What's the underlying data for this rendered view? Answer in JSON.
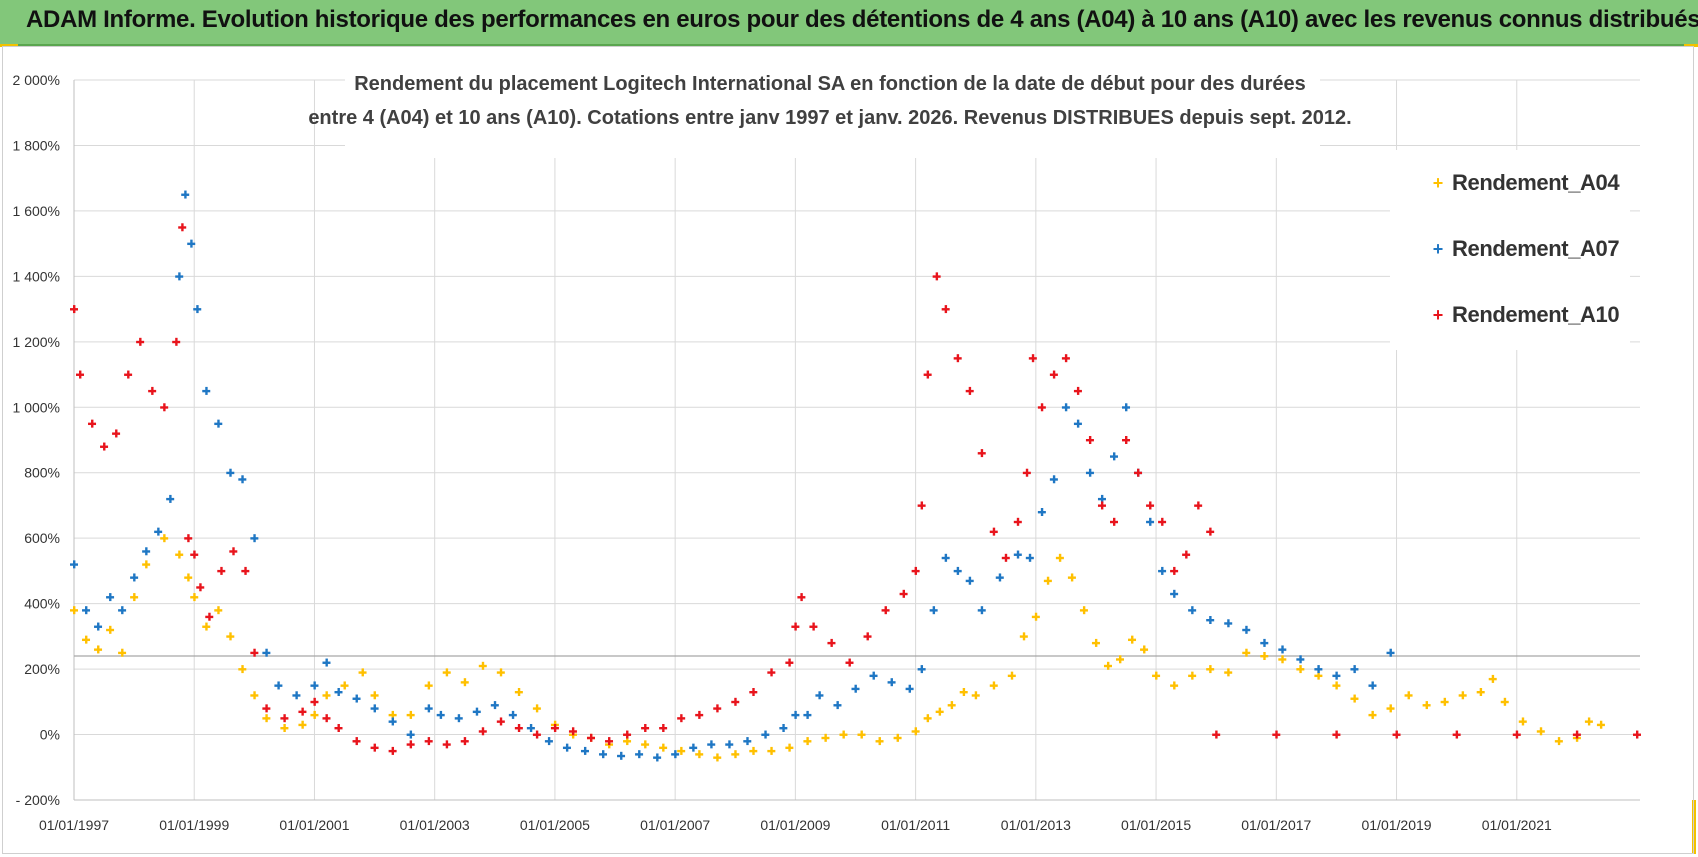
{
  "banner": {
    "title": "ADAM Informe. Evolution historique des performances en euros pour des détentions de 4 ans (A04) à 10 ans (A10) avec les revenus connus distribués"
  },
  "chart_data": {
    "type": "scatter",
    "title_line1": "Rendement du placement Logitech International SA en fonction de la date de début pour des durées",
    "title_line2": "entre 4 (A04) et 10 ans (A10). Cotations entre janv 1997 et janv. 2026. Revenus DISTRIBUES depuis sept. 2012.",
    "ylim": [
      -200,
      2000
    ],
    "xlim": [
      1997.0,
      2023.05
    ],
    "y_ticks": [
      -200,
      0,
      200,
      400,
      600,
      800,
      1000,
      1200,
      1400,
      1600,
      1800,
      2000
    ],
    "y_tick_labels": [
      "- 200%",
      "0%",
      "200%",
      "400%",
      "600%",
      "800%",
      "1 000%",
      "1 200%",
      "1 400%",
      "1 600%",
      "1 800%",
      "2 000%"
    ],
    "x_ticks": [
      1997.0,
      1999.0,
      2001.0,
      2003.0,
      2005.0,
      2007.0,
      2009.0,
      2011.0,
      2013.0,
      2015.0,
      2017.0,
      2019.0,
      2021.0
    ],
    "x_tick_labels": [
      "01/01/1997",
      "01/01/1999",
      "01/01/2001",
      "01/01/2003",
      "01/01/2005",
      "01/01/2007",
      "01/01/2009",
      "01/01/2011",
      "01/01/2013",
      "01/01/2015",
      "01/01/2017",
      "01/01/2019",
      "01/01/2021"
    ],
    "grid": true,
    "legend_position": "top-right",
    "series": [
      {
        "name": "Rendement_A04",
        "color": "#ffc000",
        "points": [
          [
            1997.0,
            380
          ],
          [
            1997.2,
            290
          ],
          [
            1997.4,
            260
          ],
          [
            1997.6,
            320
          ],
          [
            1997.8,
            250
          ],
          [
            1998.0,
            420
          ],
          [
            1998.2,
            520
          ],
          [
            1998.5,
            600
          ],
          [
            1998.75,
            550
          ],
          [
            1998.9,
            480
          ],
          [
            1999.0,
            420
          ],
          [
            1999.2,
            330
          ],
          [
            1999.4,
            380
          ],
          [
            1999.6,
            300
          ],
          [
            1999.8,
            200
          ],
          [
            2000.0,
            120
          ],
          [
            2000.2,
            50
          ],
          [
            2000.5,
            20
          ],
          [
            2000.8,
            30
          ],
          [
            2001.0,
            60
          ],
          [
            2001.2,
            120
          ],
          [
            2001.5,
            150
          ],
          [
            2001.8,
            190
          ],
          [
            2002.0,
            120
          ],
          [
            2002.3,
            60
          ],
          [
            2002.6,
            60
          ],
          [
            2002.9,
            150
          ],
          [
            2003.2,
            190
          ],
          [
            2003.5,
            160
          ],
          [
            2003.8,
            210
          ],
          [
            2004.1,
            190
          ],
          [
            2004.4,
            130
          ],
          [
            2004.7,
            80
          ],
          [
            2005.0,
            30
          ],
          [
            2005.3,
            0
          ],
          [
            2005.6,
            -10
          ],
          [
            2005.9,
            -30
          ],
          [
            2006.2,
            -20
          ],
          [
            2006.5,
            -30
          ],
          [
            2006.8,
            -40
          ],
          [
            2007.1,
            -50
          ],
          [
            2007.4,
            -60
          ],
          [
            2007.7,
            -70
          ],
          [
            2008.0,
            -60
          ],
          [
            2008.3,
            -50
          ],
          [
            2008.6,
            -50
          ],
          [
            2008.9,
            -40
          ],
          [
            2009.2,
            -20
          ],
          [
            2009.5,
            -10
          ],
          [
            2009.8,
            0
          ],
          [
            2010.1,
            0
          ],
          [
            2010.4,
            -20
          ],
          [
            2010.7,
            -10
          ],
          [
            2011.0,
            10
          ],
          [
            2011.2,
            50
          ],
          [
            2011.4,
            70
          ],
          [
            2011.6,
            90
          ],
          [
            2011.8,
            130
          ],
          [
            2012.0,
            120
          ],
          [
            2012.3,
            150
          ],
          [
            2012.6,
            180
          ],
          [
            2012.8,
            300
          ],
          [
            2013.0,
            360
          ],
          [
            2013.2,
            470
          ],
          [
            2013.4,
            540
          ],
          [
            2013.6,
            480
          ],
          [
            2013.8,
            380
          ],
          [
            2014.0,
            280
          ],
          [
            2014.2,
            210
          ],
          [
            2014.4,
            230
          ],
          [
            2014.6,
            290
          ],
          [
            2014.8,
            260
          ],
          [
            2015.0,
            180
          ],
          [
            2015.3,
            150
          ],
          [
            2015.6,
            180
          ],
          [
            2015.9,
            200
          ],
          [
            2016.2,
            190
          ],
          [
            2016.5,
            250
          ],
          [
            2016.8,
            240
          ],
          [
            2017.1,
            230
          ],
          [
            2017.4,
            200
          ],
          [
            2017.7,
            180
          ],
          [
            2018.0,
            150
          ],
          [
            2018.3,
            110
          ],
          [
            2018.6,
            60
          ],
          [
            2018.9,
            80
          ],
          [
            2019.2,
            120
          ],
          [
            2019.5,
            90
          ],
          [
            2019.8,
            100
          ],
          [
            2020.1,
            120
          ],
          [
            2020.4,
            130
          ],
          [
            2020.6,
            170
          ],
          [
            2020.8,
            100
          ],
          [
            2021.1,
            40
          ],
          [
            2021.4,
            10
          ],
          [
            2021.7,
            -20
          ],
          [
            2022.0,
            -10
          ],
          [
            2022.2,
            40
          ],
          [
            2022.4,
            30
          ]
        ]
      },
      {
        "name": "Rendement_A07",
        "color": "#1f77c4",
        "points": [
          [
            1997.0,
            520
          ],
          [
            1997.2,
            380
          ],
          [
            1997.4,
            330
          ],
          [
            1997.6,
            420
          ],
          [
            1997.8,
            380
          ],
          [
            1998.0,
            480
          ],
          [
            1998.2,
            560
          ],
          [
            1998.4,
            620
          ],
          [
            1998.6,
            720
          ],
          [
            1998.75,
            1400
          ],
          [
            1998.85,
            1650
          ],
          [
            1998.95,
            1500
          ],
          [
            1999.05,
            1300
          ],
          [
            1999.2,
            1050
          ],
          [
            1999.4,
            950
          ],
          [
            1999.6,
            800
          ],
          [
            1999.8,
            780
          ],
          [
            2000.0,
            600
          ],
          [
            2000.2,
            250
          ],
          [
            2000.4,
            150
          ],
          [
            2000.7,
            120
          ],
          [
            2001.0,
            150
          ],
          [
            2001.2,
            220
          ],
          [
            2001.4,
            130
          ],
          [
            2001.7,
            110
          ],
          [
            2002.0,
            80
          ],
          [
            2002.3,
            40
          ],
          [
            2002.6,
            0
          ],
          [
            2002.9,
            80
          ],
          [
            2003.1,
            60
          ],
          [
            2003.4,
            50
          ],
          [
            2003.7,
            70
          ],
          [
            2004.0,
            90
          ],
          [
            2004.3,
            60
          ],
          [
            2004.6,
            20
          ],
          [
            2004.9,
            -20
          ],
          [
            2005.2,
            -40
          ],
          [
            2005.5,
            -50
          ],
          [
            2005.8,
            -60
          ],
          [
            2006.1,
            -65
          ],
          [
            2006.4,
            -60
          ],
          [
            2006.7,
            -70
          ],
          [
            2007.0,
            -60
          ],
          [
            2007.3,
            -40
          ],
          [
            2007.6,
            -30
          ],
          [
            2007.9,
            -30
          ],
          [
            2008.2,
            -20
          ],
          [
            2008.5,
            0
          ],
          [
            2008.8,
            20
          ],
          [
            2009.0,
            60
          ],
          [
            2009.2,
            60
          ],
          [
            2009.4,
            120
          ],
          [
            2009.7,
            90
          ],
          [
            2010.0,
            140
          ],
          [
            2010.3,
            180
          ],
          [
            2010.6,
            160
          ],
          [
            2010.9,
            140
          ],
          [
            2011.1,
            200
          ],
          [
            2011.3,
            380
          ],
          [
            2011.5,
            540
          ],
          [
            2011.7,
            500
          ],
          [
            2011.9,
            470
          ],
          [
            2012.1,
            380
          ],
          [
            2012.4,
            480
          ],
          [
            2012.7,
            550
          ],
          [
            2012.9,
            540
          ],
          [
            2013.1,
            680
          ],
          [
            2013.3,
            780
          ],
          [
            2013.5,
            1000
          ],
          [
            2013.7,
            950
          ],
          [
            2013.9,
            800
          ],
          [
            2014.1,
            720
          ],
          [
            2014.3,
            850
          ],
          [
            2014.5,
            1000
          ],
          [
            2014.7,
            800
          ],
          [
            2014.9,
            650
          ],
          [
            2015.1,
            500
          ],
          [
            2015.3,
            430
          ],
          [
            2015.6,
            380
          ],
          [
            2015.9,
            350
          ],
          [
            2016.2,
            340
          ],
          [
            2016.5,
            320
          ],
          [
            2016.8,
            280
          ],
          [
            2017.1,
            260
          ],
          [
            2017.4,
            230
          ],
          [
            2017.7,
            200
          ],
          [
            2018.0,
            180
          ],
          [
            2018.3,
            200
          ],
          [
            2018.6,
            150
          ],
          [
            2018.9,
            250
          ]
        ]
      },
      {
        "name": "Rendement_A10",
        "color": "#e8141c",
        "points": [
          [
            1997.0,
            1300
          ],
          [
            1997.1,
            1100
          ],
          [
            1997.3,
            950
          ],
          [
            1997.5,
            880
          ],
          [
            1997.7,
            920
          ],
          [
            1997.9,
            1100
          ],
          [
            1998.1,
            1200
          ],
          [
            1998.3,
            1050
          ],
          [
            1998.5,
            1000
          ],
          [
            1998.7,
            1200
          ],
          [
            1998.8,
            1550
          ],
          [
            1998.9,
            600
          ],
          [
            1999.0,
            550
          ],
          [
            1999.1,
            450
          ],
          [
            1999.25,
            360
          ],
          [
            1999.45,
            500
          ],
          [
            1999.65,
            560
          ],
          [
            1999.85,
            500
          ],
          [
            2000.0,
            250
          ],
          [
            2000.2,
            80
          ],
          [
            2000.5,
            50
          ],
          [
            2000.8,
            70
          ],
          [
            2001.0,
            100
          ],
          [
            2001.2,
            50
          ],
          [
            2001.4,
            20
          ],
          [
            2001.7,
            -20
          ],
          [
            2002.0,
            -40
          ],
          [
            2002.3,
            -50
          ],
          [
            2002.6,
            -30
          ],
          [
            2002.9,
            -20
          ],
          [
            2003.2,
            -30
          ],
          [
            2003.5,
            -20
          ],
          [
            2003.8,
            10
          ],
          [
            2004.1,
            40
          ],
          [
            2004.4,
            20
          ],
          [
            2004.7,
            0
          ],
          [
            2005.0,
            20
          ],
          [
            2005.3,
            10
          ],
          [
            2005.6,
            -10
          ],
          [
            2005.9,
            -20
          ],
          [
            2006.2,
            0
          ],
          [
            2006.5,
            20
          ],
          [
            2006.8,
            20
          ],
          [
            2007.1,
            50
          ],
          [
            2007.4,
            60
          ],
          [
            2007.7,
            80
          ],
          [
            2008.0,
            100
          ],
          [
            2008.3,
            130
          ],
          [
            2008.6,
            190
          ],
          [
            2008.9,
            220
          ],
          [
            2009.0,
            330
          ],
          [
            2009.1,
            420
          ],
          [
            2009.3,
            330
          ],
          [
            2009.6,
            280
          ],
          [
            2009.9,
            220
          ],
          [
            2010.2,
            300
          ],
          [
            2010.5,
            380
          ],
          [
            2010.8,
            430
          ],
          [
            2011.0,
            500
          ],
          [
            2011.1,
            700
          ],
          [
            2011.2,
            1100
          ],
          [
            2011.35,
            1400
          ],
          [
            2011.5,
            1300
          ],
          [
            2011.7,
            1150
          ],
          [
            2011.9,
            1050
          ],
          [
            2012.1,
            860
          ],
          [
            2012.3,
            620
          ],
          [
            2012.5,
            540
          ],
          [
            2012.7,
            650
          ],
          [
            2012.85,
            800
          ],
          [
            2012.95,
            1150
          ],
          [
            2013.1,
            1000
          ],
          [
            2013.3,
            1100
          ],
          [
            2013.5,
            1150
          ],
          [
            2013.7,
            1050
          ],
          [
            2013.9,
            900
          ],
          [
            2014.1,
            700
          ],
          [
            2014.3,
            650
          ],
          [
            2014.5,
            900
          ],
          [
            2014.7,
            800
          ],
          [
            2014.9,
            700
          ],
          [
            2015.1,
            650
          ],
          [
            2015.3,
            500
          ],
          [
            2015.5,
            550
          ],
          [
            2015.7,
            700
          ],
          [
            2015.9,
            620
          ]
        ]
      },
      {
        "name": "",
        "color": "#e8141c",
        "points": [
          [
            2016.0,
            0
          ],
          [
            2017.0,
            0
          ],
          [
            2018.0,
            0
          ],
          [
            2019.0,
            0
          ],
          [
            2020.0,
            0
          ],
          [
            2021.0,
            0
          ],
          [
            2022.0,
            0
          ],
          [
            2023.0,
            0
          ]
        ]
      }
    ],
    "legend": [
      {
        "label": "Rendement_A04",
        "color": "#ffc000"
      },
      {
        "label": "Rendement_A07",
        "color": "#1f77c4"
      },
      {
        "label": "Rendement_A10",
        "color": "#e8141c"
      }
    ],
    "reference_line_y": 240
  }
}
